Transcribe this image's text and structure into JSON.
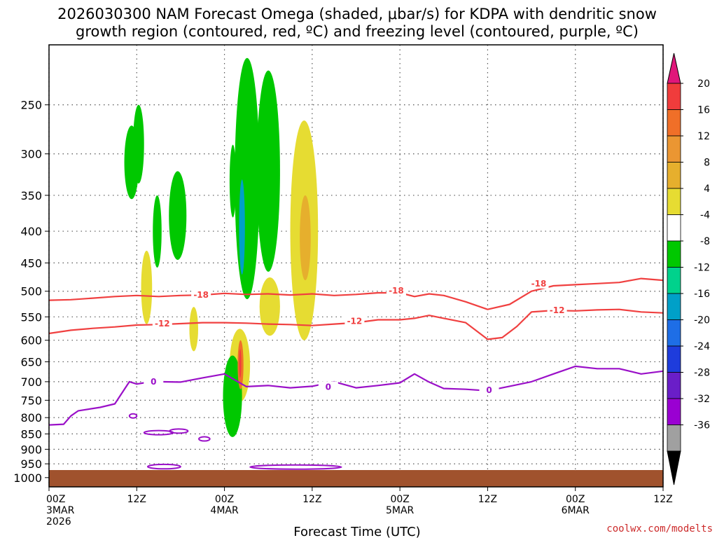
{
  "title": {
    "line1": "2026030300 NAM Forecast Omega (shaded, μbar/s) for KDPA with dendritic snow",
    "line2": "growth region (contoured, red, ºC) and freezing level (contoured, purple, ºC)"
  },
  "watermark": "coolwx.com/modelts",
  "chart_data": {
    "type": "heatmap",
    "title": "2026030300 NAM Forecast Omega (shaded, μbar/s) for KDPA with dendritic snow growth region (contoured, red, ºC) and freezing level (contoured, purple, ºC)",
    "xlabel": "Forecast Time (UTC)",
    "ylabel": "",
    "x_unit": "forecast hour",
    "xlim": [
      0,
      84
    ],
    "y_unit": "hPa",
    "ylim": [
      1035,
      200
    ],
    "y_ticks": [
      250,
      300,
      350,
      400,
      450,
      500,
      550,
      600,
      650,
      700,
      750,
      800,
      850,
      900,
      950,
      1000
    ],
    "x_ticks": [
      {
        "hour": 0,
        "lines": [
          "00Z",
          "3MAR",
          "2026"
        ]
      },
      {
        "hour": 12,
        "lines": [
          "12Z"
        ]
      },
      {
        "hour": 24,
        "lines": [
          "00Z",
          "4MAR"
        ]
      },
      {
        "hour": 36,
        "lines": [
          "12Z"
        ]
      },
      {
        "hour": 48,
        "lines": [
          "00Z",
          "5MAR"
        ]
      },
      {
        "hour": 60,
        "lines": [
          "12Z"
        ]
      },
      {
        "hour": 72,
        "lines": [
          "00Z",
          "6MAR"
        ]
      },
      {
        "hour": 84,
        "lines": [
          "12Z"
        ]
      }
    ],
    "colorbar": {
      "ticks": [
        "20",
        "16",
        "12",
        "8",
        "4",
        "-4",
        "-8",
        "-12",
        "-16",
        "-20",
        "-24",
        "-28",
        "-32",
        "-36"
      ],
      "colors": [
        "#e0167a",
        "#f03c3c",
        "#f06f28",
        "#eb9632",
        "#e6af2d",
        "#e6dc32",
        "#ffffff",
        "#00c800",
        "#00d28c",
        "#00a0c8",
        "#1e6ee6",
        "#1e3cdc",
        "#6a1ec8",
        "#9a00d2",
        "#a0a0a0",
        "#000000"
      ]
    },
    "contour_labels": {
      "dgz_upper": "-18",
      "dgz_lower": "-12",
      "freezing": "0"
    },
    "series": [
      {
        "name": "-18 ºC isotherm (red)",
        "color": "#f04040",
        "hours": [
          0,
          3,
          6,
          9,
          12,
          15,
          18,
          21,
          24,
          27,
          30,
          33,
          36,
          39,
          42,
          45,
          48,
          50,
          52,
          54,
          57,
          60,
          63,
          66,
          69,
          72,
          75,
          78,
          81,
          84
        ],
        "pressure": [
          517,
          516,
          513,
          510,
          508,
          510,
          508,
          507,
          504,
          506,
          505,
          507,
          505,
          508,
          506,
          503,
          503,
          510,
          505,
          508,
          520,
          535,
          525,
          500,
          490,
          488,
          486,
          484,
          477,
          480
        ]
      },
      {
        "name": "-12 ºC isotherm (red)",
        "color": "#f04040",
        "hours": [
          0,
          3,
          6,
          9,
          12,
          15,
          18,
          21,
          24,
          27,
          30,
          33,
          36,
          39,
          42,
          45,
          48,
          50,
          52,
          54,
          57,
          60,
          62,
          64,
          66,
          69,
          72,
          75,
          78,
          81,
          84
        ],
        "pressure": [
          585,
          578,
          574,
          571,
          567,
          566,
          564,
          562,
          562,
          563,
          565,
          566,
          568,
          565,
          562,
          556,
          556,
          553,
          547,
          553,
          562,
          598,
          594,
          570,
          540,
          537,
          538,
          536,
          535,
          540,
          542
        ]
      },
      {
        "name": "0 ºC freezing level (purple)",
        "color": "#9a10c8",
        "hours": [
          0,
          2,
          3,
          4,
          7,
          9,
          11,
          12,
          13,
          15,
          18,
          21,
          24,
          27,
          30,
          33,
          36,
          39,
          42,
          45,
          48,
          50,
          52,
          54,
          57,
          60,
          63,
          66,
          69,
          72,
          75,
          78,
          81,
          84
        ],
        "pressure": [
          822,
          820,
          795,
          780,
          770,
          760,
          700,
          706,
          703,
          700,
          701,
          690,
          680,
          713,
          710,
          716,
          712,
          700,
          716,
          710,
          703,
          680,
          701,
          718,
          720,
          724,
          712,
          700,
          680,
          661,
          667,
          667,
          680,
          673
        ]
      }
    ],
    "shaded_regions": [
      {
        "omega": "-4 to -8",
        "color": "#00c800",
        "hours": [
          10.3,
          12.3
        ],
        "pressure": [
          270,
          355
        ]
      },
      {
        "omega": "-4 to -8",
        "color": "#00c800",
        "hours": [
          11.5,
          13.0
        ],
        "pressure": [
          250,
          335
        ]
      },
      {
        "omega": "-4 to -8",
        "color": "#00c800",
        "hours": [
          14.2,
          15.4
        ],
        "pressure": [
          350,
          458
        ]
      },
      {
        "omega": "-4 to -8",
        "color": "#00c800",
        "hours": [
          16.4,
          18.8
        ],
        "pressure": [
          320,
          445
        ]
      },
      {
        "omega": "4 to 8",
        "color": "#e6dc32",
        "hours": [
          12.6,
          14.1
        ],
        "pressure": [
          430,
          565
        ]
      },
      {
        "omega": "4 to 8",
        "color": "#e6dc32",
        "hours": [
          19.2,
          20.4
        ],
        "pressure": [
          530,
          625
        ]
      },
      {
        "omega": "-4 to -8",
        "color": "#00c800",
        "hours": [
          24.7,
          25.6
        ],
        "pressure": [
          290,
          380
        ]
      },
      {
        "omega": "-4 to -8",
        "color": "#00c800",
        "hours": [
          25.4,
          28.8
        ],
        "pressure": [
          210,
          515
        ]
      },
      {
        "omega": "-4 to -8",
        "color": "#00c800",
        "hours": [
          28.4,
          31.6
        ],
        "pressure": [
          220,
          465
        ]
      },
      {
        "omega": "4 to 8",
        "color": "#e6dc32",
        "hours": [
          28.8,
          31.6
        ],
        "pressure": [
          475,
          590
        ]
      },
      {
        "omega": "4 to 16",
        "color": "#e6dc32",
        "hours": [
          24.7,
          27.5
        ],
        "pressure": [
          575,
          755
        ]
      },
      {
        "omega": "-4 to -8",
        "color": "#00c800",
        "hours": [
          23.8,
          26.4
        ],
        "pressure": [
          635,
          860
        ]
      },
      {
        "omega": "4 to 12",
        "color": "#e6dc32",
        "hours": [
          33.0,
          36.8
        ],
        "pressure": [
          265,
          600
        ]
      }
    ]
  }
}
